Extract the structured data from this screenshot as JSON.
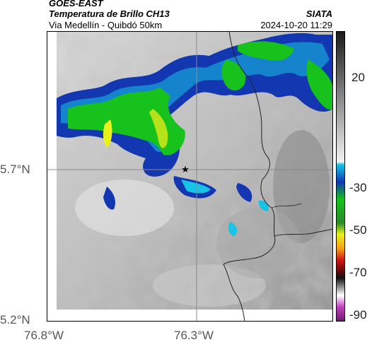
{
  "header": {
    "satellite": "GOES-EAST",
    "product": "Temperatura de Brillo CH13",
    "route": "Via Medellín - Quibdó 50km",
    "institution": "SIATA",
    "datetime": "2024-10-20 11:29"
  },
  "map": {
    "y_ticks": [
      "5.7°N",
      "5.2°N"
    ],
    "x_ticks": [
      "76.8°W",
      "76.3°W"
    ],
    "marker": "star"
  },
  "colorbar": {
    "labels": [
      "20",
      "-30",
      "-50",
      "-70",
      "-90"
    ],
    "colors": {
      "gray_top": "#1a1a1a",
      "gray_bottom": "#f2f2f2",
      "cyan": "#19c3e6",
      "blue": "#1237b0",
      "green": "#17c21c",
      "yellow": "#e8f21a",
      "orange": "#f29a1a",
      "red": "#c81414",
      "dark_red": "#5a0a0a",
      "magenta": "#c040c0"
    }
  }
}
